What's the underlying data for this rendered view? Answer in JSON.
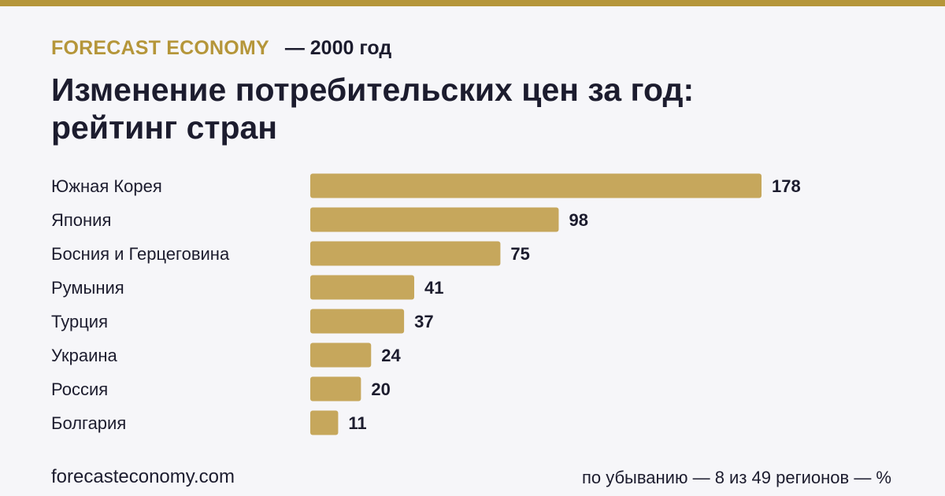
{
  "header": {
    "brand": "FORECAST ECONOMY",
    "year": "— 2000 год",
    "title_line1": "Изменение потребительских цен за год:",
    "title_line2": "рейтинг стран"
  },
  "footer": {
    "site": "forecasteconomy.com",
    "note": "по убыванию — 8 из 49 регионов — %"
  },
  "colors": {
    "accent": "#b5963a",
    "bar": "#c6a75c",
    "background": "#f6f6f9",
    "text": "#1c1c2e"
  },
  "chart_data": {
    "type": "bar",
    "orientation": "horizontal",
    "categories": [
      "Южная Корея",
      "Япония",
      "Босния и Герцеговина",
      "Румыния",
      "Турция",
      "Украина",
      "Россия",
      "Болгария"
    ],
    "values": [
      178,
      98,
      75,
      41,
      37,
      24,
      20,
      11
    ],
    "unit": "%",
    "grid": false,
    "legend": "none"
  }
}
